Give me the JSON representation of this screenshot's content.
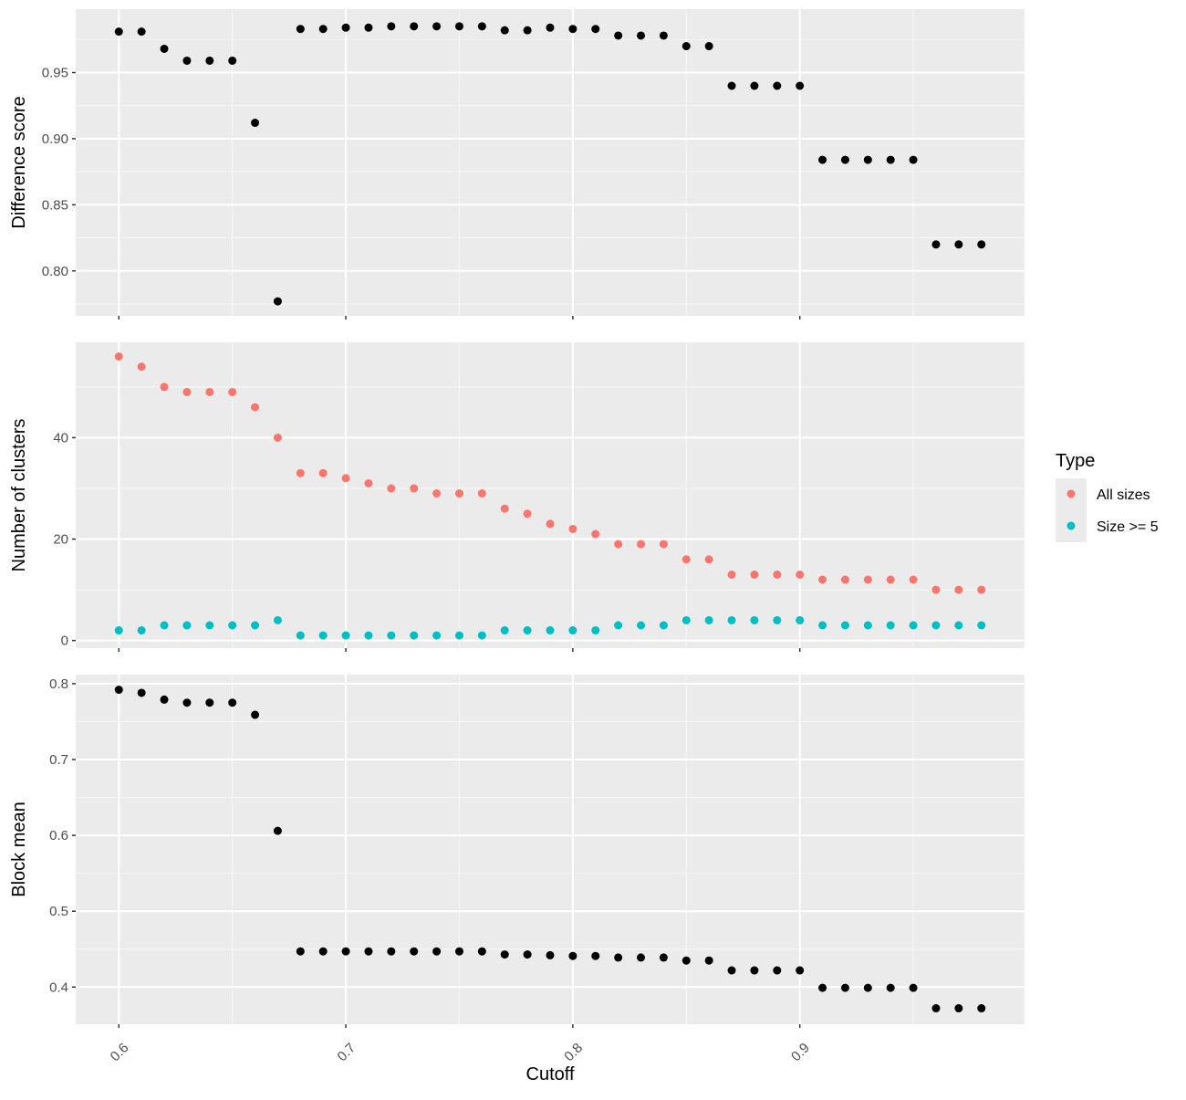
{
  "chart_data": [
    {
      "type": "scatter",
      "panel": "top",
      "title": "",
      "xlabel": "",
      "ylabel": "Difference score",
      "xlim": [
        0.581,
        0.999
      ],
      "ylim": [
        0.766,
        0.998
      ],
      "x_ticks": [
        0.6,
        0.7,
        0.8,
        0.9
      ],
      "y_ticks": [
        0.8,
        0.85,
        0.9,
        0.95
      ],
      "y_tick_labels": [
        "0.80",
        "0.85",
        "0.90",
        "0.95"
      ],
      "grid": true,
      "series": [
        {
          "color": "#000000",
          "x": [
            0.6,
            0.61,
            0.62,
            0.63,
            0.64,
            0.65,
            0.66,
            0.67,
            0.68,
            0.69,
            0.7,
            0.71,
            0.72,
            0.73,
            0.74,
            0.75,
            0.76,
            0.77,
            0.78,
            0.79,
            0.8,
            0.81,
            0.82,
            0.83,
            0.84,
            0.85,
            0.86,
            0.87,
            0.88,
            0.89,
            0.9,
            0.91,
            0.92,
            0.93,
            0.94,
            0.95,
            0.96,
            0.97,
            0.98
          ],
          "y": [
            0.981,
            0.981,
            0.968,
            0.959,
            0.959,
            0.959,
            0.912,
            0.777,
            0.983,
            0.983,
            0.984,
            0.984,
            0.985,
            0.985,
            0.985,
            0.985,
            0.985,
            0.982,
            0.982,
            0.984,
            0.983,
            0.983,
            0.978,
            0.978,
            0.978,
            0.97,
            0.97,
            0.94,
            0.94,
            0.94,
            0.94,
            0.884,
            0.884,
            0.884,
            0.884,
            0.884,
            0.82,
            0.82,
            0.82
          ]
        }
      ]
    },
    {
      "type": "scatter",
      "panel": "middle",
      "title": "",
      "xlabel": "",
      "ylabel": "Number of clusters",
      "xlim": [
        0.581,
        0.999
      ],
      "ylim": [
        -1.5,
        58.8
      ],
      "x_ticks": [
        0.6,
        0.7,
        0.8,
        0.9
      ],
      "y_ticks": [
        0,
        20,
        40
      ],
      "y_tick_labels": [
        "0",
        "20",
        "40"
      ],
      "grid": true,
      "legend_title": "Type",
      "legend_position": "right",
      "series": [
        {
          "name": "All sizes",
          "color": "#F8766D",
          "x": [
            0.6,
            0.61,
            0.62,
            0.63,
            0.64,
            0.65,
            0.66,
            0.67,
            0.68,
            0.69,
            0.7,
            0.71,
            0.72,
            0.73,
            0.74,
            0.75,
            0.76,
            0.77,
            0.78,
            0.79,
            0.8,
            0.81,
            0.82,
            0.83,
            0.84,
            0.85,
            0.86,
            0.87,
            0.88,
            0.89,
            0.9,
            0.91,
            0.92,
            0.93,
            0.94,
            0.95,
            0.96,
            0.97,
            0.98
          ],
          "y": [
            56,
            54,
            50,
            49,
            49,
            49,
            46,
            40,
            33,
            33,
            32,
            31,
            30,
            30,
            29,
            29,
            29,
            26,
            25,
            23,
            22,
            21,
            19,
            19,
            19,
            16,
            16,
            13,
            13,
            13,
            13,
            12,
            12,
            12,
            12,
            12,
            10,
            10,
            10
          ]
        },
        {
          "name": "Size >= 5",
          "color": "#00BFC4",
          "x": [
            0.6,
            0.61,
            0.62,
            0.63,
            0.64,
            0.65,
            0.66,
            0.67,
            0.68,
            0.69,
            0.7,
            0.71,
            0.72,
            0.73,
            0.74,
            0.75,
            0.76,
            0.77,
            0.78,
            0.79,
            0.8,
            0.81,
            0.82,
            0.83,
            0.84,
            0.85,
            0.86,
            0.87,
            0.88,
            0.89,
            0.9,
            0.91,
            0.92,
            0.93,
            0.94,
            0.95,
            0.96,
            0.97,
            0.98
          ],
          "y": [
            2,
            2,
            3,
            3,
            3,
            3,
            3,
            4,
            1,
            1,
            1,
            1,
            1,
            1,
            1,
            1,
            1,
            2,
            2,
            2,
            2,
            2,
            3,
            3,
            3,
            4,
            4,
            4,
            4,
            4,
            4,
            3,
            3,
            3,
            3,
            3,
            3,
            3,
            3
          ]
        }
      ]
    },
    {
      "type": "scatter",
      "panel": "bottom",
      "title": "",
      "xlabel": "Cutoff",
      "ylabel": "Block mean",
      "xlim": [
        0.581,
        0.999
      ],
      "ylim": [
        0.351,
        0.812
      ],
      "x_ticks": [
        0.6,
        0.7,
        0.8,
        0.9
      ],
      "x_tick_labels": [
        "0.6",
        "0.7",
        "0.8",
        "0.9"
      ],
      "y_ticks": [
        0.4,
        0.5,
        0.6,
        0.7,
        0.8
      ],
      "y_tick_labels": [
        "0.4",
        "0.5",
        "0.6",
        "0.7",
        "0.8"
      ],
      "grid": true,
      "series": [
        {
          "color": "#000000",
          "x": [
            0.6,
            0.61,
            0.62,
            0.63,
            0.64,
            0.65,
            0.66,
            0.67,
            0.68,
            0.69,
            0.7,
            0.71,
            0.72,
            0.73,
            0.74,
            0.75,
            0.76,
            0.77,
            0.78,
            0.79,
            0.8,
            0.81,
            0.82,
            0.83,
            0.84,
            0.85,
            0.86,
            0.87,
            0.88,
            0.89,
            0.9,
            0.91,
            0.92,
            0.93,
            0.94,
            0.95,
            0.96,
            0.97,
            0.98
          ],
          "y": [
            0.792,
            0.788,
            0.779,
            0.775,
            0.775,
            0.775,
            0.759,
            0.606,
            0.447,
            0.447,
            0.447,
            0.447,
            0.447,
            0.447,
            0.447,
            0.447,
            0.447,
            0.443,
            0.443,
            0.442,
            0.441,
            0.441,
            0.439,
            0.439,
            0.439,
            0.435,
            0.435,
            0.422,
            0.422,
            0.422,
            0.422,
            0.399,
            0.399,
            0.399,
            0.399,
            0.399,
            0.372,
            0.372,
            0.372
          ]
        }
      ]
    }
  ]
}
